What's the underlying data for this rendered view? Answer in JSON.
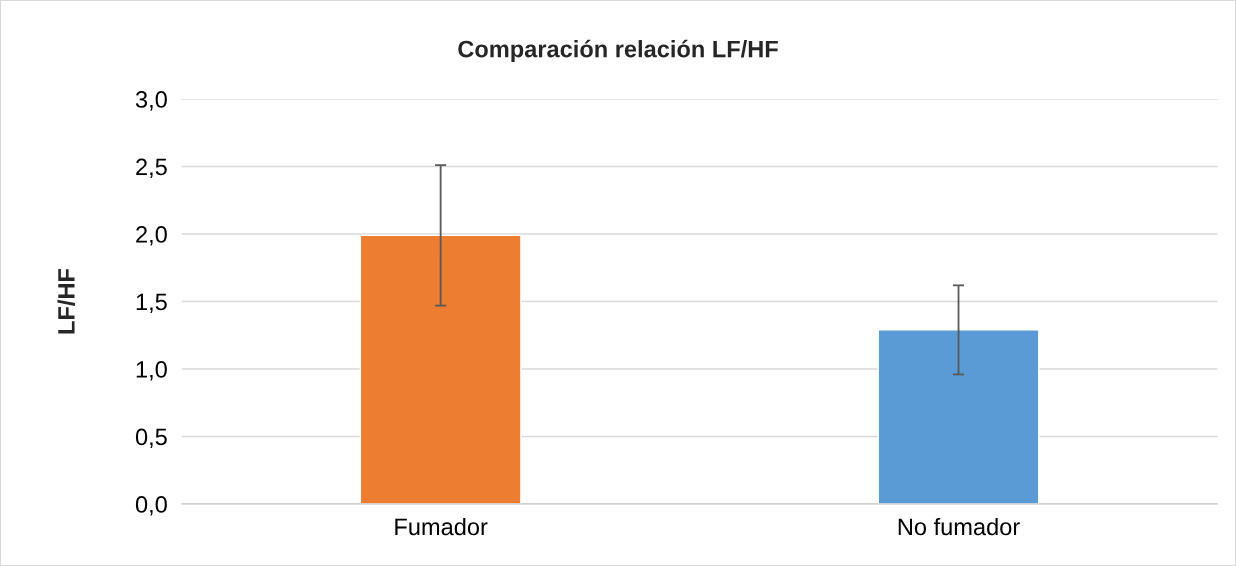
{
  "chart_data": {
    "type": "bar",
    "title": "Comparación relación LF/HF",
    "ylabel": "LF/HF",
    "categories": [
      "Fumador",
      "No fumador"
    ],
    "values": [
      1.99,
      1.29
    ],
    "colors": [
      "#ed7d31",
      "#5b9bd5"
    ],
    "errors": [
      0.52,
      0.33
    ],
    "ylim": [
      0,
      3
    ],
    "yticks": [
      {
        "value": 0,
        "label": "0,0"
      },
      {
        "value": 0.5,
        "label": "0,5"
      },
      {
        "value": 1,
        "label": "1,0"
      },
      {
        "value": 1.5,
        "label": "1,5"
      },
      {
        "value": 2,
        "label": "2,0"
      },
      {
        "value": 2.5,
        "label": "2,5"
      },
      {
        "value": 3,
        "label": "3,0"
      }
    ],
    "grid": "y",
    "legend": false
  }
}
